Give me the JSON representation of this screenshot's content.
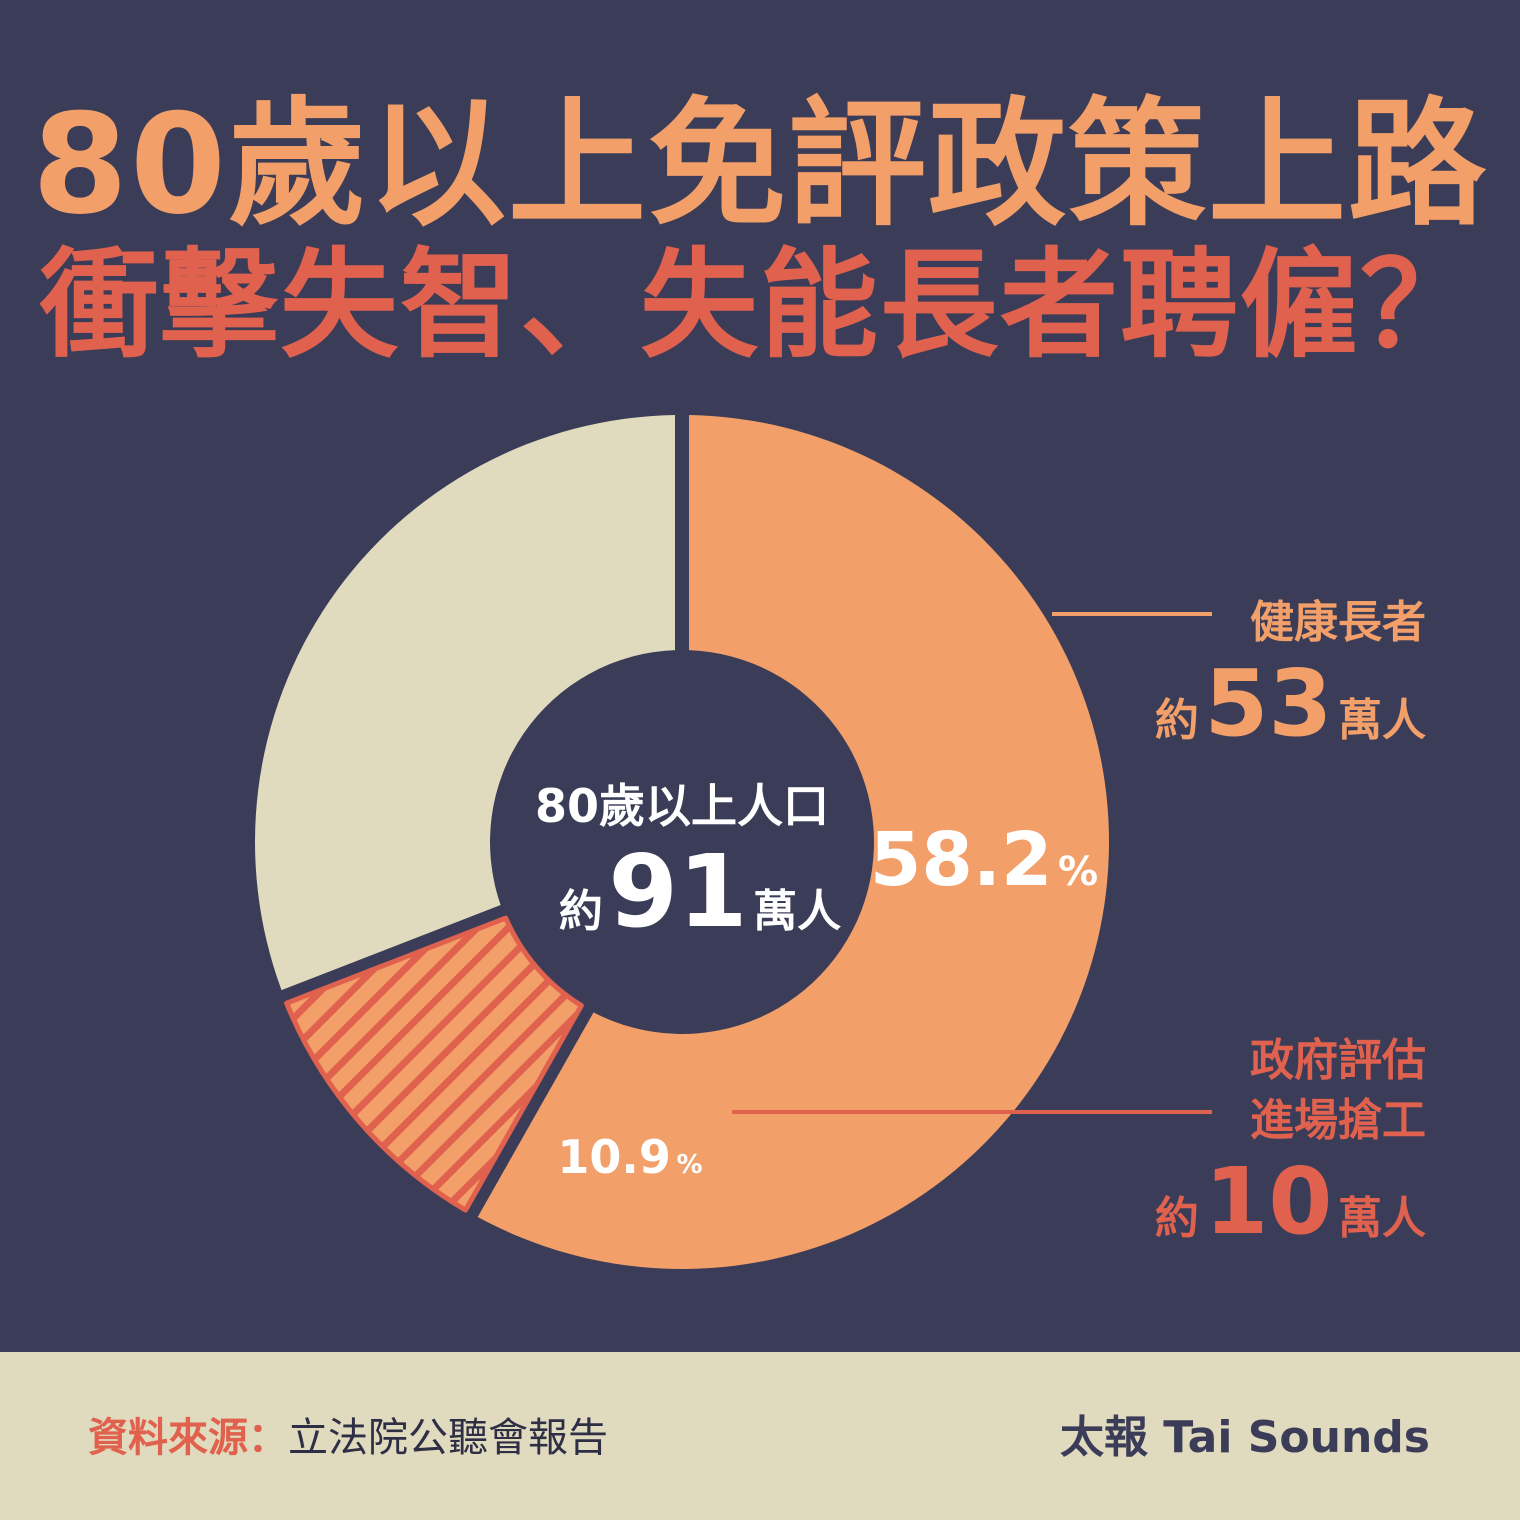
{
  "title_line1": "80歲以上免評政策上路",
  "title_line2": "衝擊失智、失能長者聘僱？",
  "colors": {
    "background": "#3b3d58",
    "accent_orange": "#f29f69",
    "accent_red": "#e0614d",
    "cream": "#e0dabe",
    "white": "#ffffff"
  },
  "chart_data": {
    "type": "pie",
    "center_label": {
      "line1": "80歲以上人口",
      "prefix": "約",
      "number": "91",
      "suffix": "萬人"
    },
    "slices": [
      {
        "key": "healthy",
        "percent": 58.2,
        "percent_text": "58.2",
        "pct_sign": "%",
        "label_line1": "健康長者",
        "label_prefix": "約",
        "label_number": "53",
        "label_suffix": "萬人",
        "color": "#f29f69",
        "pattern": "solid"
      },
      {
        "key": "gov",
        "percent": 10.9,
        "percent_text": "10.9",
        "pct_sign": "%",
        "label_line1": "政府評估",
        "label_line2": "進場搶工",
        "label_prefix": "約",
        "label_number": "10",
        "label_suffix": "萬人",
        "color": "#f29f69",
        "stroke": "#e0614d",
        "pattern": "hatched"
      },
      {
        "key": "other",
        "percent": 30.9,
        "color": "#e0dabe",
        "pattern": "solid"
      }
    ]
  },
  "footer": {
    "source_label": "資料來源：",
    "source_text": "立法院公聽會報告",
    "brand": "太報 Tai Sounds"
  }
}
